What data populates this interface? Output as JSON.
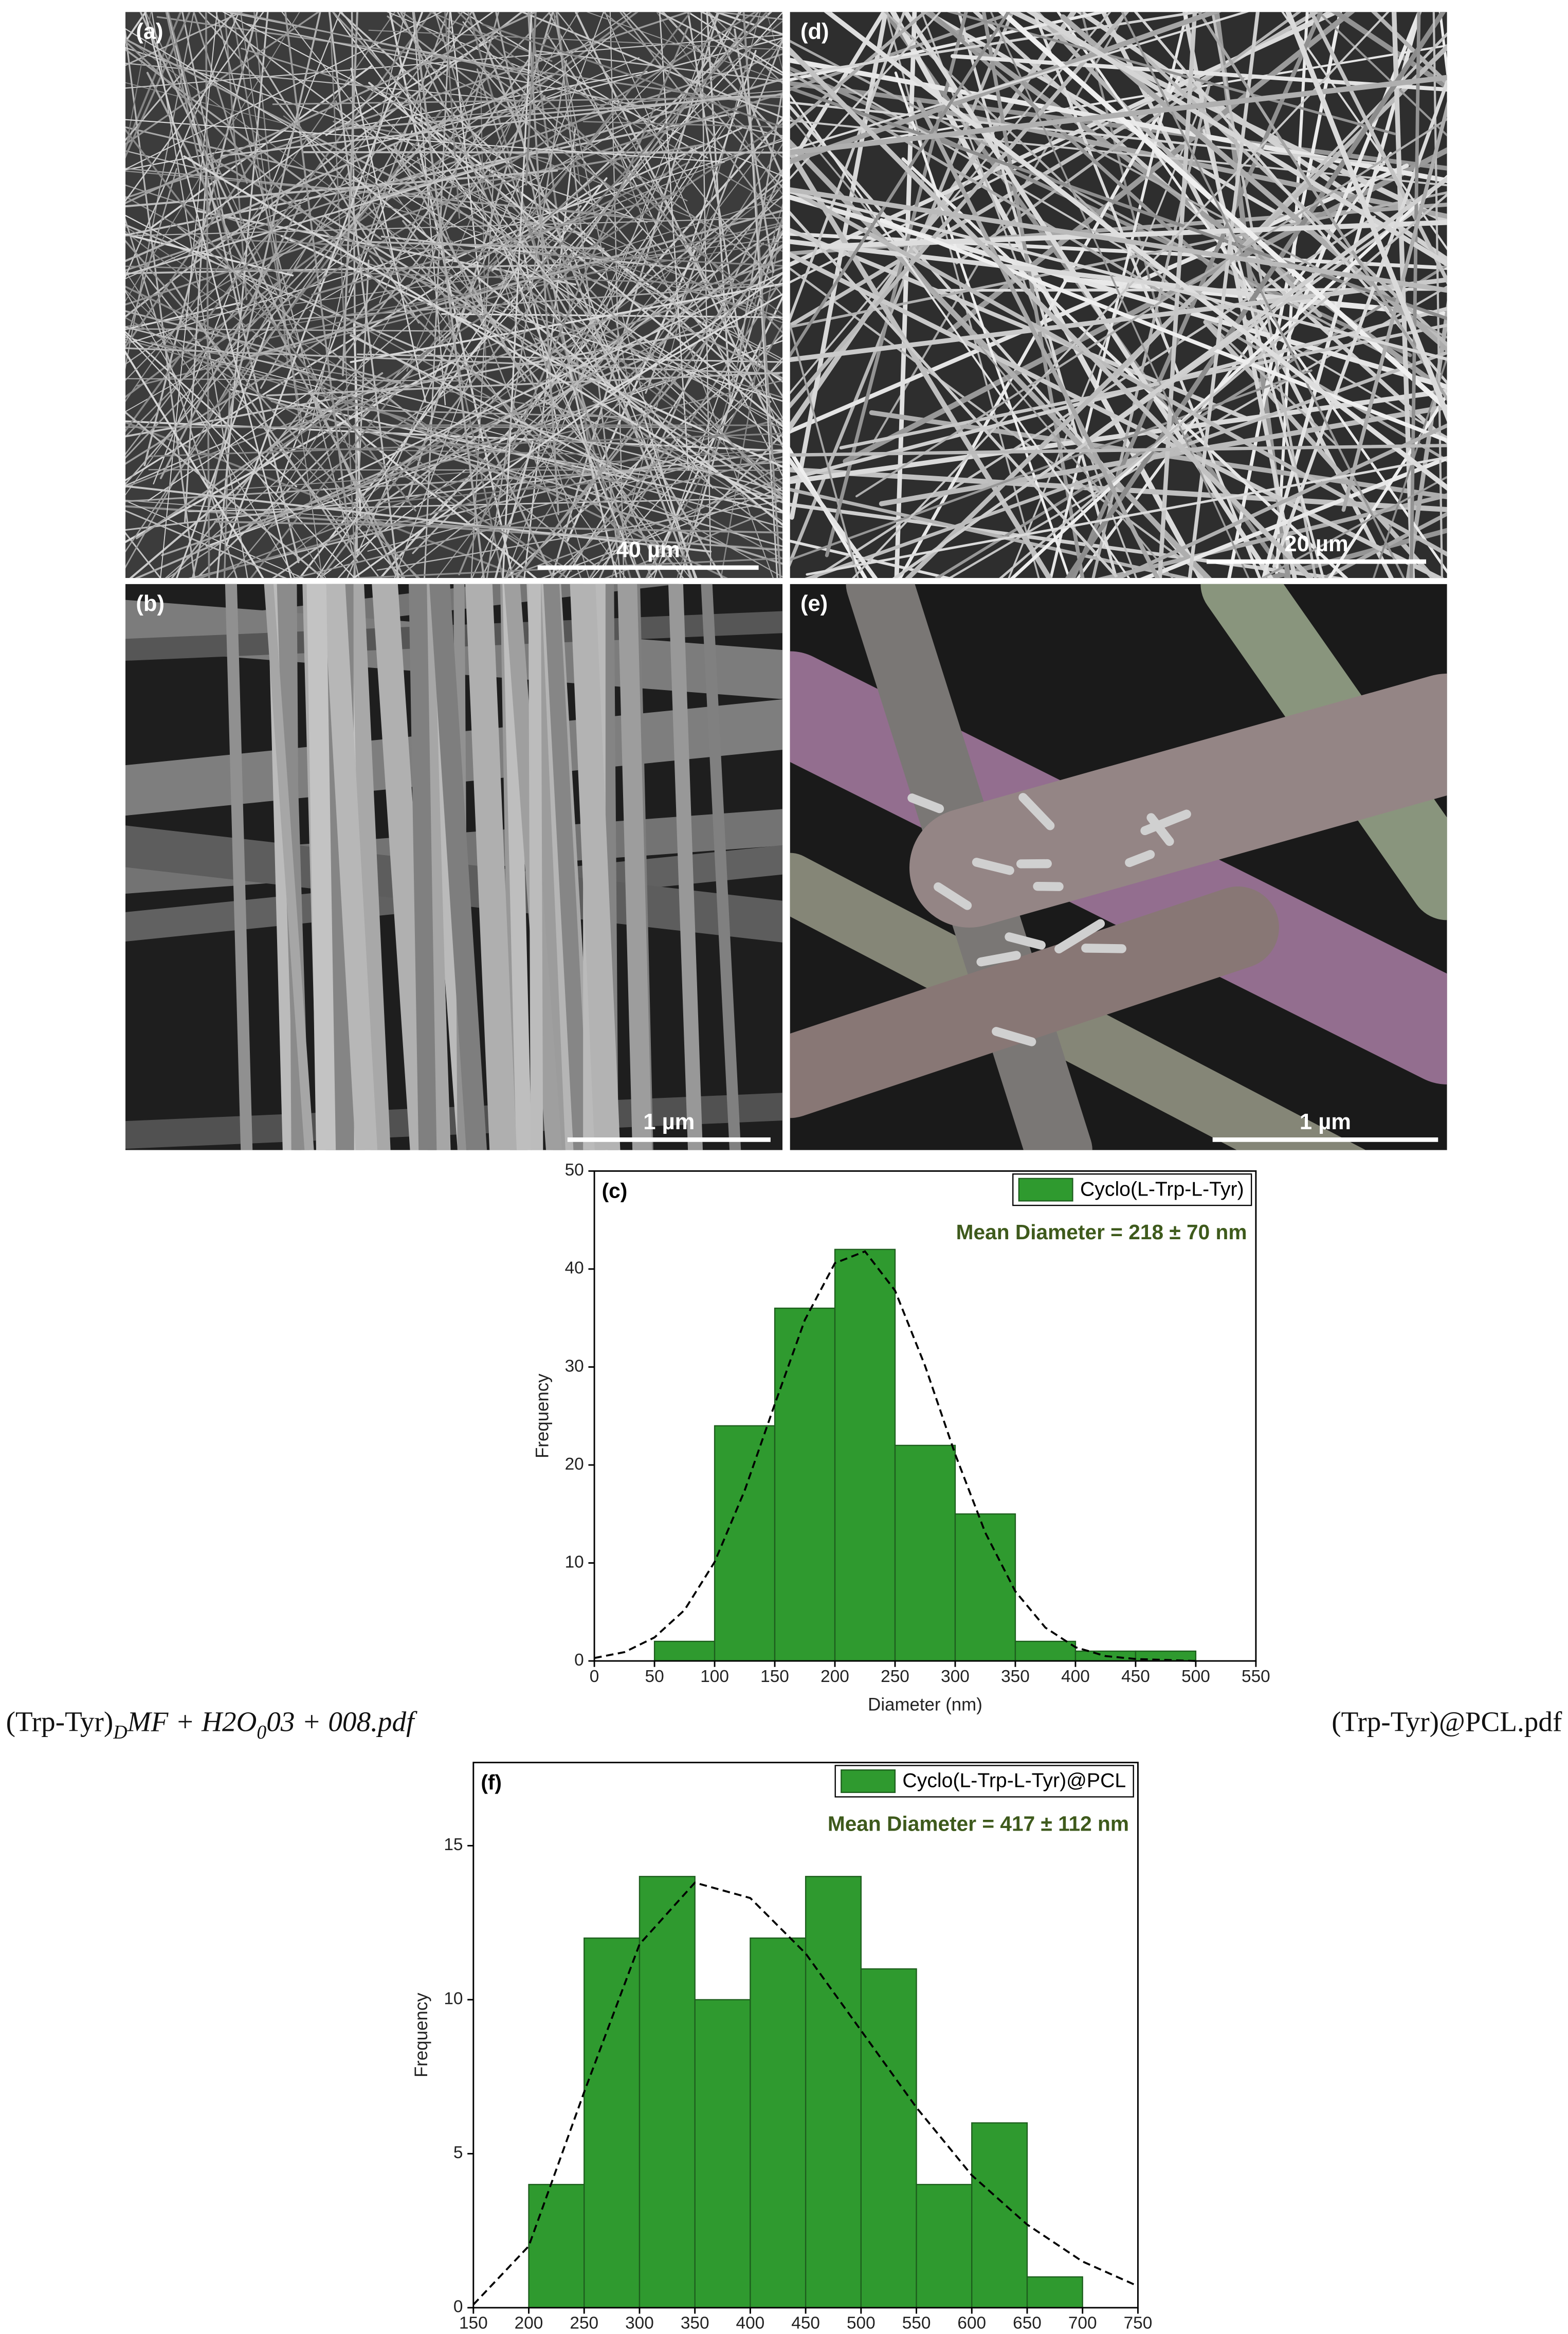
{
  "panels": [
    {
      "label": "(a)",
      "scale_bar": "40 µm"
    },
    {
      "label": "(d)",
      "scale_bar": "20 µm"
    },
    {
      "label": "(b)",
      "scale_bar": "1 µm"
    },
    {
      "label": "(e)",
      "scale_bar": "1 µm"
    }
  ],
  "captions": {
    "left": [
      "(Trp-Tyr)",
      "D",
      "MF + H2O",
      "0",
      "03 + 008.pdf"
    ],
    "right": "(Trp-Tyr)@PCL.pdf"
  },
  "chart_data": [
    {
      "type": "histogram",
      "panel_label": "(c)",
      "annotation": "Mean Diameter = 218 ± 70 nm",
      "xlabel": "Diameter (nm)",
      "ylabel": "Frequency",
      "bins": [
        50,
        100,
        150,
        200,
        250,
        300,
        350,
        400,
        450,
        500
      ],
      "series": [
        {
          "name": "Cyclo(L-Trp-L-Tyr)",
          "color": "#2f9a2f",
          "values": [
            2,
            24,
            36,
            42,
            22,
            15,
            2,
            1,
            1
          ]
        }
      ],
      "fit": {
        "x": [
          0,
          25,
          50,
          75,
          100,
          125,
          150,
          175,
          200,
          225,
          250,
          275,
          300,
          325,
          350,
          375,
          400,
          425,
          450,
          475,
          500
        ],
        "values": [
          0.3,
          0.9,
          2.4,
          5.2,
          10.1,
          17.4,
          26.2,
          34.8,
          40.6,
          41.8,
          37.8,
          30.1,
          21.1,
          13.1,
          7.1,
          3.4,
          1.4,
          0.5,
          0.2,
          0.1,
          0
        ]
      },
      "xlim": [
        0,
        550
      ],
      "xticks": [
        0,
        50,
        100,
        150,
        200,
        250,
        300,
        350,
        400,
        450,
        500,
        550
      ],
      "ylim": [
        0,
        50
      ],
      "yticks": [
        0,
        10,
        20,
        30,
        40,
        50
      ],
      "legend": "upper right"
    },
    {
      "type": "histogram",
      "panel_label": "(f)",
      "annotation": "Mean Diameter = 417 ± 112 nm",
      "xlabel": "Diameter (nm)",
      "ylabel": "Frequency",
      "bins": [
        200,
        250,
        300,
        350,
        400,
        450,
        500,
        550,
        600,
        650,
        700
      ],
      "series": [
        {
          "name": "Cyclo(L-Trp-L-Tyr)@PCL",
          "color": "#2f9a2f",
          "values": [
            4,
            12,
            14,
            10,
            12,
            14,
            11,
            4,
            6,
            1
          ]
        }
      ],
      "fit": {
        "x": [
          150,
          200,
          250,
          300,
          350,
          400,
          450,
          500,
          550,
          600,
          650,
          700,
          750
        ],
        "values": [
          0.1,
          2,
          7,
          11.8,
          13.8,
          13.3,
          11.5,
          9,
          6.5,
          4.3,
          2.7,
          1.5,
          0.7
        ]
      },
      "xlim": [
        150,
        750
      ],
      "xticks": [
        150,
        200,
        250,
        300,
        350,
        400,
        450,
        500,
        550,
        600,
        650,
        700,
        750
      ],
      "ylim": [
        0,
        17.7
      ],
      "yticks": [
        0,
        5,
        10,
        15
      ],
      "legend": "upper right"
    }
  ]
}
